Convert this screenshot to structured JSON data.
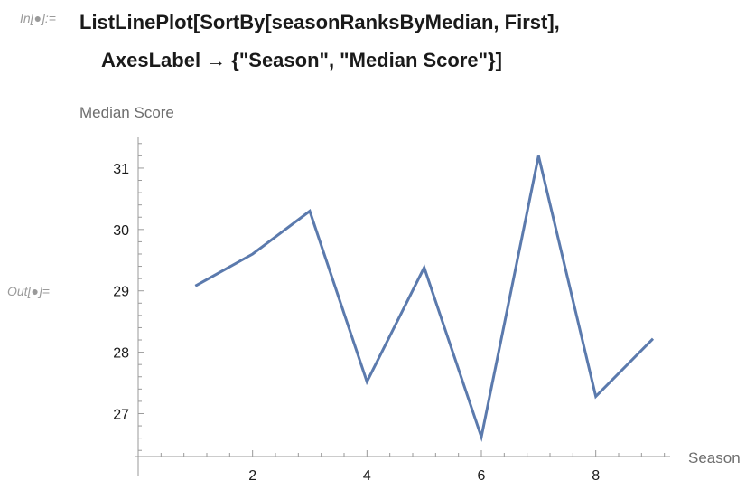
{
  "cell": {
    "in_label": "In[●]:=",
    "out_label": "Out[●]=",
    "code_line1": "ListLinePlot[SortBy[seasonRanksByMedian, First],",
    "code_line2": "AxesLabel → {\"Season\", \"Median Score\"}]"
  },
  "chart_data": {
    "type": "line",
    "x": [
      1,
      2,
      3,
      4,
      5,
      6,
      7,
      8,
      9
    ],
    "series": [
      {
        "values": [
          29.08,
          29.6,
          30.3,
          27.52,
          29.38,
          26.62,
          31.2,
          27.28,
          28.22
        ]
      }
    ],
    "xlabel": "Season",
    "ylabel": "Median Score",
    "xlim": [
      0,
      9.3
    ],
    "ylim": [
      26.3,
      31.5
    ],
    "xticks": [
      2,
      4,
      6,
      8
    ],
    "yticks": [
      27,
      28,
      29,
      30,
      31
    ],
    "grid": false,
    "line_color": "#5b7aad",
    "axis_color": "#9a9a9a"
  }
}
